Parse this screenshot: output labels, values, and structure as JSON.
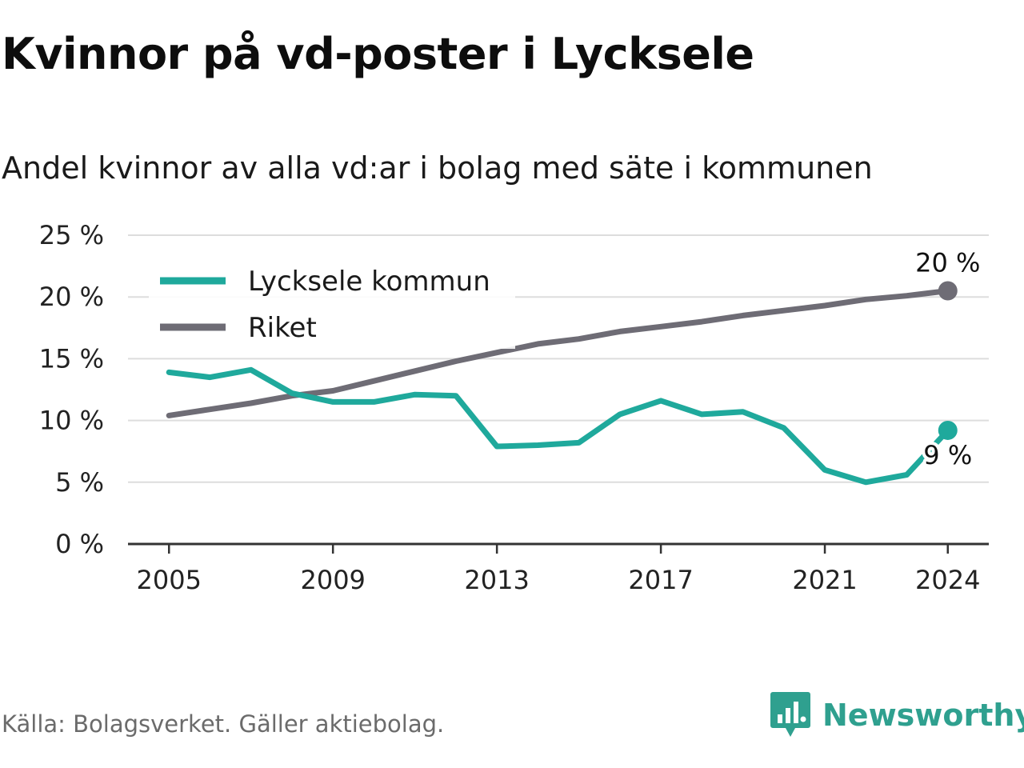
{
  "title": "Kvinnor på vd-poster i Lycksele",
  "subtitle": "Andel kvinnor av alla vd:ar i bolag med säte i kommunen",
  "source": "Källa: Bolagsverket. Gäller aktiebolag.",
  "brand": {
    "name": "Newsworthy",
    "icon": "newsworthy-logo-icon",
    "color": "#2fa08f"
  },
  "chart_data": {
    "type": "line",
    "x": [
      2005,
      2006,
      2007,
      2008,
      2009,
      2010,
      2011,
      2012,
      2013,
      2014,
      2015,
      2016,
      2017,
      2018,
      2019,
      2020,
      2021,
      2022,
      2023,
      2024
    ],
    "xticks": [
      2005,
      2009,
      2013,
      2017,
      2021,
      2024
    ],
    "yticks": [
      0,
      5,
      10,
      15,
      20,
      25
    ],
    "ytick_labels": [
      "0 %",
      "5 %",
      "10 %",
      "15 %",
      "20 %",
      "25 %"
    ],
    "ylim": [
      0,
      25
    ],
    "xlim": [
      2004,
      2025
    ],
    "grid": true,
    "legend_position": "top-left",
    "series": [
      {
        "name": "Lycksele kommun",
        "color": "#1fa99c",
        "values": [
          13.9,
          13.5,
          14.1,
          12.2,
          11.5,
          11.5,
          12.1,
          12.0,
          7.9,
          8.0,
          8.2,
          10.5,
          11.6,
          10.5,
          10.7,
          9.4,
          6.0,
          5.0,
          5.6,
          9.2
        ],
        "end_label": "9 %"
      },
      {
        "name": "Riket",
        "color": "#6e6c75",
        "values": [
          10.4,
          10.9,
          11.4,
          12.0,
          12.4,
          13.2,
          14.0,
          14.8,
          15.5,
          16.2,
          16.6,
          17.2,
          17.6,
          18.0,
          18.5,
          18.9,
          19.3,
          19.8,
          20.1,
          20.5
        ],
        "end_label": "20 %"
      }
    ]
  }
}
